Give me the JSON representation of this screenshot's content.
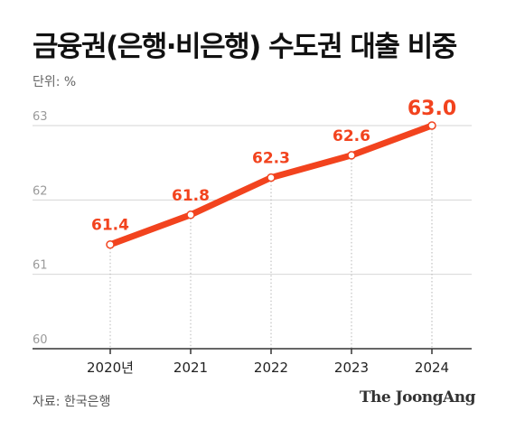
{
  "header": {
    "title": "금융권(은행·비은행) 수도권 대출 비중",
    "unit": "단위: %"
  },
  "footer": {
    "source": "자료: 한국은행",
    "logo": "The JoongAng"
  },
  "colors": {
    "line": "#F2431E",
    "grid": "#d6d6d6",
    "axis": "#333333",
    "tick_text": "#9a9a9a"
  },
  "chart_data": {
    "type": "line",
    "title": "금융권(은행·비은행) 수도권 대출 비중",
    "unit": "단위: %",
    "x": [
      "2020년",
      "2021",
      "2022",
      "2023",
      "2024"
    ],
    "series": [
      {
        "values": [
          61.4,
          61.8,
          62.3,
          62.6,
          63.0
        ]
      }
    ],
    "data_labels": [
      "61.4",
      "61.8",
      "62.3",
      "62.6",
      "63.0"
    ],
    "yticks": [
      "60",
      "61",
      "62",
      "63"
    ],
    "ylim": [
      60,
      63
    ],
    "grid": true,
    "legend": "none"
  }
}
